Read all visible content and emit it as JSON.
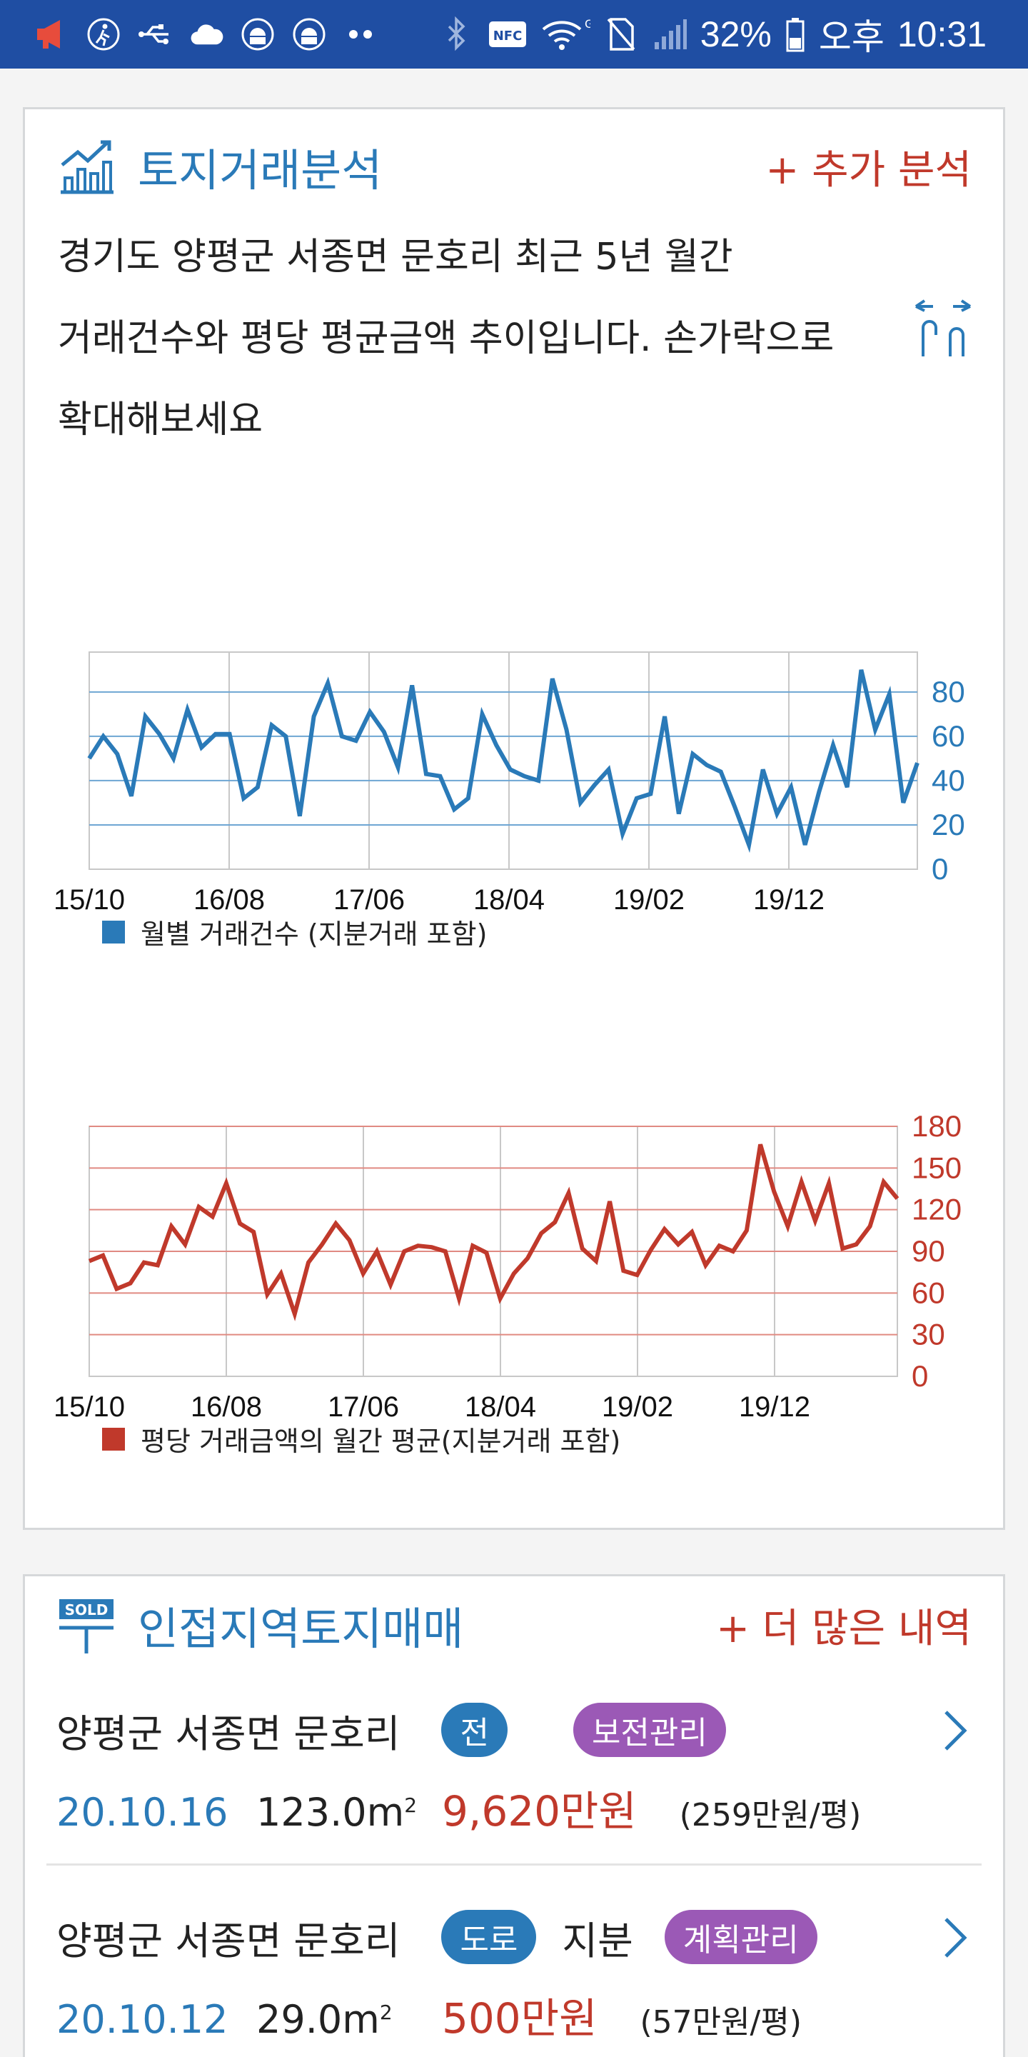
{
  "status_bar": {
    "battery": "32%",
    "ampm": "오후",
    "time": "10:31",
    "nfc": "NFC",
    "icons_left": [
      "megaphone-icon",
      "accessibility-icon",
      "usb-icon",
      "cloud-icon",
      "android-debug-icon",
      "android-debug-icon",
      "more-dots-icon"
    ],
    "icons_right": [
      "bluetooth-icon",
      "nfc-icon",
      "wifi-icon",
      "no-sim-icon",
      "signal-icon",
      "battery-icon"
    ]
  },
  "analysis": {
    "title": "토지거래분석",
    "more": "+ 추가 분석",
    "desc_line1": "경기도 양평군 서종면 문호리 최근 5년 월간",
    "desc_line2": "거래건수와 평당 평균금액 추이입니다. 손가락으로",
    "desc_line3": "확대해보세요",
    "title_icon": "chart-growth-icon",
    "zoom_icon": "pinch-zoom-icon"
  },
  "chart_data": [
    {
      "type": "line",
      "x_labels": [
        "15/10",
        "16/08",
        "17/06",
        "18/04",
        "19/02",
        "19/12"
      ],
      "y_ticks": [
        0,
        20,
        40,
        60,
        80
      ],
      "ylim": [
        0,
        98
      ],
      "series": [
        {
          "name": "월별 거래건수 (지분거래 포함)",
          "color": "#2a7ab8",
          "values": [
            50,
            60,
            52,
            33,
            69,
            61,
            50,
            72,
            55,
            61,
            61,
            32,
            37,
            65,
            60,
            24,
            69,
            84,
            60,
            58,
            71,
            62,
            46,
            83,
            43,
            42,
            27,
            32,
            70,
            56,
            45,
            42,
            40,
            86,
            63,
            30,
            38,
            45,
            16,
            32,
            34,
            69,
            25,
            52,
            47,
            44,
            28,
            11,
            45,
            25,
            37,
            11,
            35,
            56,
            37,
            90,
            63,
            79,
            30,
            48
          ]
        }
      ],
      "legend": "월별 거래건수 (지분거래 포함)"
    },
    {
      "type": "line",
      "x_labels": [
        "15/10",
        "16/08",
        "17/06",
        "18/04",
        "19/02",
        "19/12"
      ],
      "y_ticks": [
        0,
        30,
        60,
        90,
        120,
        150,
        180
      ],
      "ylim": [
        0,
        180
      ],
      "series": [
        {
          "name": "평당 거래금액의 월간 평균(지분거래 포함)",
          "color": "#c0392b",
          "values": [
            83,
            87,
            63,
            67,
            82,
            80,
            108,
            95,
            122,
            115,
            139,
            110,
            104,
            59,
            74,
            45,
            82,
            95,
            110,
            98,
            74,
            90,
            66,
            90,
            94,
            93,
            90,
            56,
            94,
            89,
            56,
            74,
            85,
            103,
            111,
            132,
            92,
            83,
            126,
            76,
            73,
            91,
            106,
            95,
            104,
            80,
            94,
            90,
            105,
            167,
            133,
            108,
            140,
            112,
            139,
            92,
            95,
            108,
            140,
            128
          ]
        }
      ],
      "legend": "평당 거래금액의 월간 평균(지분거래 포함)"
    }
  ],
  "nearby": {
    "title": "인접지역토지매매",
    "more": "+ 더 많은 내역",
    "title_icon": "sold-sign-icon",
    "listings": [
      {
        "address": "양평군 서종면 문호리",
        "type_badge": "전",
        "share": "",
        "zone_badge": "보전관리",
        "date": "20.10.16",
        "area": "123.0m",
        "area_unit_sup": "2",
        "price": "9,620만원",
        "unit_price": "(259만원/평)"
      },
      {
        "address": "양평군 서종면 문호리",
        "type_badge": "도로",
        "share": "지분",
        "zone_badge": "계획관리",
        "date": "20.10.12",
        "area": "29.0m",
        "area_unit_sup": "2",
        "price": "500만원",
        "unit_price": "(57만원/평)"
      }
    ]
  }
}
